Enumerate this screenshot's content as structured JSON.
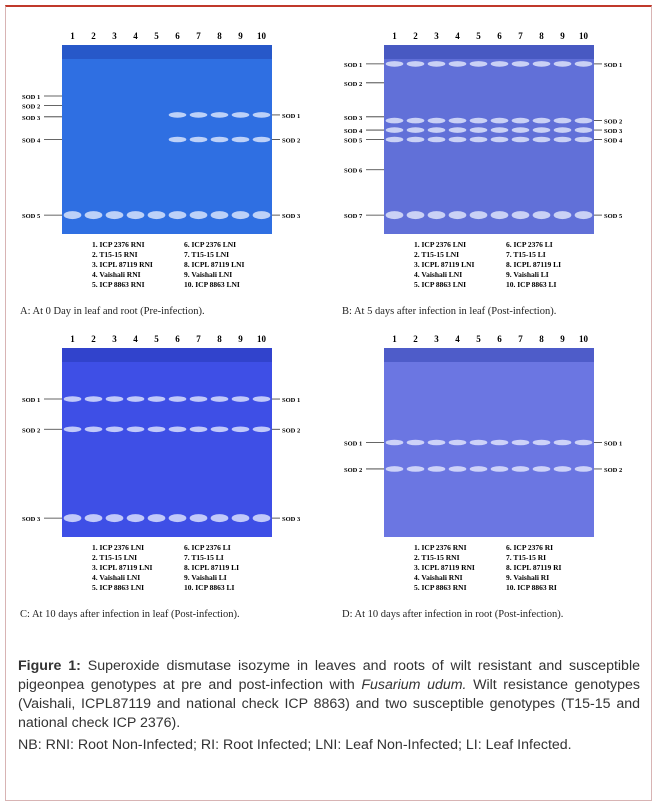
{
  "panels": [
    {
      "lanes": [
        "1",
        "2",
        "3",
        "4",
        "5",
        "6",
        "7",
        "8",
        "9",
        "10"
      ],
      "left_labels": [
        "SOD 1",
        "SOD 2",
        "SOD 3",
        "SOD 4",
        "SOD 5"
      ],
      "right_labels": [
        "SOD 1",
        "SOD 2",
        "SOD 3"
      ],
      "legend": [
        "1. ICP 2376 RNI",
        "2. T15-15 RNI",
        "3. ICPL 87119 RNI",
        "4. Vaishali RNI",
        "5. ICP 8863 RNI",
        "6. ICP 2376 LNI",
        "7. T15-15 LNI",
        "8. ICPL 87119 LNI",
        "9. Vaishali LNI",
        "10. ICP 8863 LNI"
      ],
      "caption": "A: At 0 Day in leaf and root (Pre-infection)."
    },
    {
      "lanes": [
        "1",
        "2",
        "3",
        "4",
        "5",
        "6",
        "7",
        "8",
        "9",
        "10"
      ],
      "left_labels": [
        "SOD 1",
        "SOD 2",
        "SOD 3",
        "SOD 4",
        "SOD 5",
        "SOD 6",
        "SOD 7"
      ],
      "right_labels": [
        "SOD 1",
        "SOD 2",
        "SOD 3",
        "SOD 4",
        "SOD 5"
      ],
      "legend": [
        "1. ICP 2376 LNI",
        "2. T15-15 LNI",
        "3. ICPL 87119 LNI",
        "4. Vaishali LNI",
        "5. ICP 8863 LNI",
        "6. ICP 2376 LI",
        "7. T15-15 LI",
        "8. ICPL 87119 LI",
        "9. Vaishali LI",
        "10. ICP 8863 LI"
      ],
      "caption": "B: At 5 days after infection in leaf (Post-infection)."
    },
    {
      "lanes": [
        "1",
        "2",
        "3",
        "4",
        "5",
        "6",
        "7",
        "8",
        "9",
        "10"
      ],
      "left_labels": [
        "SOD 1",
        "SOD 2",
        "SOD 3"
      ],
      "right_labels": [
        "SOD 1",
        "SOD 2",
        "SOD 3"
      ],
      "legend": [
        "1. ICP 2376 LNI",
        "2. T15-15 LNI",
        "3. ICPL 87119 LNI",
        "4. Vaishali LNI",
        "5. ICP 8863 LNI",
        "6. ICP 2376 LI",
        "7. T15-15 LI",
        "8. ICPL 87119 LI",
        "9. Vaishali LI",
        "10. ICP 8863 LI"
      ],
      "caption": "C: At 10 days after infection in leaf (Post-infection)."
    },
    {
      "lanes": [
        "1",
        "2",
        "3",
        "4",
        "5",
        "6",
        "7",
        "8",
        "9",
        "10"
      ],
      "left_labels": [
        "SOD 1",
        "SOD 2"
      ],
      "right_labels": [
        "SOD 1",
        "SOD 2"
      ],
      "legend": [
        "1. ICP 2376 RNI",
        "2. T15-15 RNI",
        "3. ICPL 87119 RNI",
        "4. Vaishali RNI",
        "5. ICP 8863 RNI",
        "6. ICP 2376 RI",
        "7. T15-15 RI",
        "8. ICPL 87119 RI",
        "9. Vaishali RI",
        "10. ICP 8863 RI"
      ],
      "caption": "D: At 10 days after infection in root (Post-infection)."
    }
  ],
  "figure_caption": {
    "label": "Figure 1:",
    "text": "Superoxide dismutase isozyme in leaves and roots of wilt resistant and susceptible pigeonpea genotypes at pre and post-infection with",
    "organism": "Fusarium udum.",
    "text_end": "Wilt resistance genotypes (Vaishali, ICPL87119 and national check ICP 8863) and two susceptible genotypes (T15-15 and national check ICP 2376).",
    "note": "NB: RNI: Root Non-Infected; RI: Root Infected; LNI: Leaf Non-Infected; LI: Leaf Infected."
  }
}
